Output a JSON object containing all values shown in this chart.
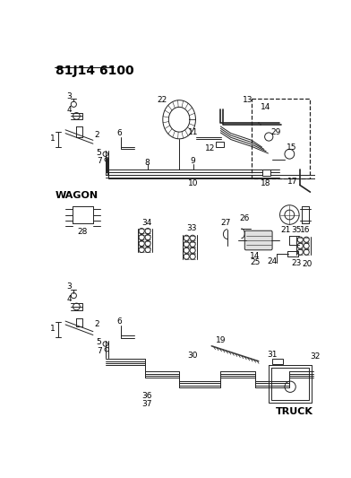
{
  "title": "81J14 6100",
  "bg_color": "#ffffff",
  "line_color": "#222222",
  "text_color": "#000000",
  "title_fontsize": 10,
  "label_fontsize": 6.5,
  "wagon_label": "WAGON",
  "truck_label": "TRUCK"
}
